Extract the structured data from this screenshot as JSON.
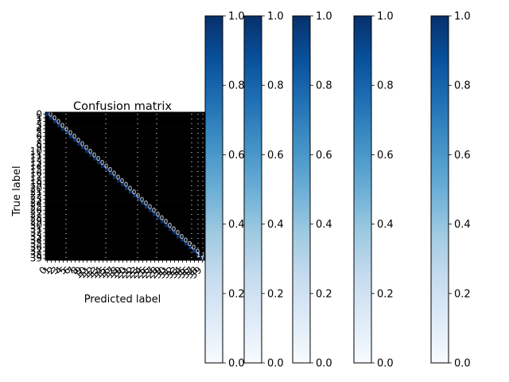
{
  "chart_data": [
    {
      "type": "heatmap",
      "title": "Confusion matrix",
      "xlabel": "Predicted label",
      "ylabel": "True label",
      "row_labels": [
        "0",
        "1",
        "2",
        "3",
        "4",
        "5",
        "6",
        "7",
        "8",
        "9",
        "10",
        "11",
        "12",
        "13",
        "14",
        "15",
        "16",
        "17",
        "18",
        "19",
        "20",
        "21",
        "22",
        "23",
        "24",
        "25",
        "26",
        "27",
        "28",
        "29",
        "30",
        "31",
        "32",
        "33",
        "34",
        "35",
        "36",
        "37",
        "38",
        "39"
      ],
      "col_labels": [
        "0",
        "1",
        "2",
        "3",
        "4",
        "5",
        "6",
        "7",
        "8",
        "9",
        "10",
        "11",
        "12",
        "13",
        "14",
        "15",
        "16",
        "17",
        "18",
        "19",
        "20",
        "21",
        "22",
        "23",
        "24",
        "25",
        "26",
        "27",
        "28",
        "29",
        "30",
        "31",
        "32",
        "33",
        "34",
        "35",
        "36",
        "37",
        "38",
        "39"
      ],
      "diagonal_value": 1.0,
      "off_diagonal_value": 0.0,
      "visible_cell_text": "1.0",
      "colormap": "Blues",
      "grid": false
    },
    {
      "type": "colorbar",
      "count": 5,
      "range": [
        0.0,
        1.0
      ],
      "ticks": [
        "0.0",
        "0.2",
        "0.4",
        "0.6",
        "0.8",
        "1.0"
      ],
      "colormap": "Blues",
      "color_low": "#f7fbff",
      "color_high": "#08306b"
    }
  ]
}
